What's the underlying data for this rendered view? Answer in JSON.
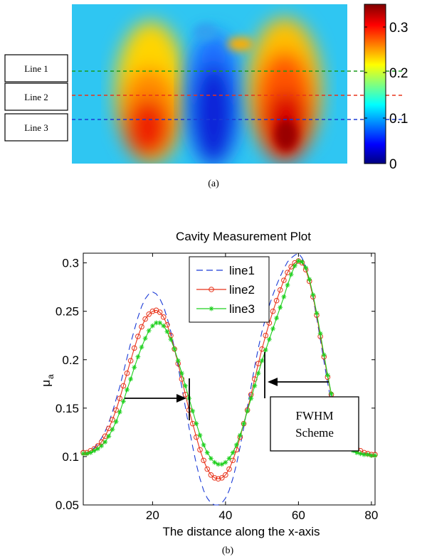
{
  "figure_a": {
    "caption": "(a)",
    "line_labels": [
      "Line 1",
      "Line 2",
      "Line 3"
    ],
    "line_colors": [
      "#1a9a1a",
      "#e8331a",
      "#1a3ad6"
    ],
    "colorbar": {
      "ticks": [
        0,
        0.1,
        0.2,
        0.3
      ],
      "tick_labels": [
        "0",
        "0.1",
        "0.2",
        "0.3"
      ],
      "min": 0,
      "max": 0.35
    }
  },
  "figure_b": {
    "caption": "(b)",
    "annotation": [
      "FWHM",
      "Scheme"
    ]
  },
  "chart_data": {
    "type": "line",
    "title": "Cavity Measurement Plot",
    "xlabel": "The distance along the x-axis",
    "ylabel": "μa",
    "xlim": [
      1,
      81
    ],
    "ylim": [
      0.05,
      0.31
    ],
    "xticks": [
      20,
      40,
      60,
      80
    ],
    "xtick_labels": [
      "20",
      "40",
      "60",
      "80"
    ],
    "yticks": [
      0.05,
      0.1,
      0.15,
      0.2,
      0.25,
      0.3
    ],
    "ytick_labels": [
      "0.05",
      "0.1",
      "0.15",
      "0.2",
      "0.25",
      "0.3"
    ],
    "legend_position": "top-center",
    "x": [
      1,
      2,
      3,
      4,
      5,
      6,
      7,
      8,
      9,
      10,
      11,
      12,
      13,
      14,
      15,
      16,
      17,
      18,
      19,
      20,
      21,
      22,
      23,
      24,
      25,
      26,
      27,
      28,
      29,
      30,
      31,
      32,
      33,
      34,
      35,
      36,
      37,
      38,
      39,
      40,
      41,
      42,
      43,
      44,
      45,
      46,
      47,
      48,
      49,
      50,
      51,
      52,
      53,
      54,
      55,
      56,
      57,
      58,
      59,
      60,
      61,
      62,
      63,
      64,
      65,
      66,
      67,
      68,
      69,
      70,
      71,
      72,
      73,
      74,
      75,
      76,
      77,
      78,
      79,
      80,
      81
    ],
    "series": [
      {
        "name": "line1",
        "color": "#1a3ad6",
        "style": "dashed",
        "marker": "none",
        "values": [
          0.104,
          0.104,
          0.106,
          0.109,
          0.113,
          0.119,
          0.126,
          0.135,
          0.146,
          0.159,
          0.172,
          0.187,
          0.202,
          0.217,
          0.231,
          0.244,
          0.255,
          0.263,
          0.268,
          0.27,
          0.268,
          0.263,
          0.255,
          0.243,
          0.229,
          0.212,
          0.193,
          0.172,
          0.151,
          0.13,
          0.11,
          0.092,
          0.077,
          0.065,
          0.057,
          0.052,
          0.05,
          0.05,
          0.052,
          0.057,
          0.065,
          0.077,
          0.092,
          0.11,
          0.13,
          0.151,
          0.172,
          0.193,
          0.212,
          0.229,
          0.243,
          0.256,
          0.267,
          0.277,
          0.286,
          0.294,
          0.301,
          0.305,
          0.308,
          0.31,
          0.305,
          0.296,
          0.282,
          0.264,
          0.243,
          0.221,
          0.198,
          0.176,
          0.156,
          0.139,
          0.126,
          0.116,
          0.11,
          0.107,
          0.105,
          0.104,
          0.103,
          0.103,
          0.103,
          0.102,
          0.102
        ]
      },
      {
        "name": "line2",
        "color": "#e8331a",
        "style": "solid",
        "marker": "circle",
        "values": [
          0.104,
          0.104,
          0.106,
          0.108,
          0.111,
          0.115,
          0.121,
          0.129,
          0.138,
          0.148,
          0.16,
          0.173,
          0.186,
          0.199,
          0.212,
          0.224,
          0.234,
          0.242,
          0.247,
          0.25,
          0.251,
          0.249,
          0.244,
          0.236,
          0.225,
          0.211,
          0.196,
          0.18,
          0.164,
          0.148,
          0.134,
          0.12,
          0.107,
          0.096,
          0.087,
          0.081,
          0.078,
          0.077,
          0.078,
          0.081,
          0.087,
          0.096,
          0.107,
          0.12,
          0.134,
          0.148,
          0.164,
          0.18,
          0.196,
          0.211,
          0.225,
          0.238,
          0.25,
          0.261,
          0.272,
          0.282,
          0.29,
          0.296,
          0.3,
          0.302,
          0.3,
          0.293,
          0.281,
          0.265,
          0.246,
          0.224,
          0.203,
          0.182,
          0.164,
          0.148,
          0.136,
          0.126,
          0.119,
          0.114,
          0.11,
          0.108,
          0.106,
          0.104,
          0.103,
          0.102,
          0.102
        ]
      },
      {
        "name": "line3",
        "color": "#1ed01e",
        "style": "solid",
        "marker": "star",
        "values": [
          0.103,
          0.103,
          0.104,
          0.106,
          0.108,
          0.111,
          0.115,
          0.121,
          0.128,
          0.136,
          0.146,
          0.157,
          0.169,
          0.18,
          0.192,
          0.203,
          0.213,
          0.222,
          0.23,
          0.235,
          0.238,
          0.238,
          0.235,
          0.229,
          0.221,
          0.211,
          0.199,
          0.186,
          0.173,
          0.16,
          0.147,
          0.134,
          0.122,
          0.112,
          0.104,
          0.098,
          0.094,
          0.092,
          0.092,
          0.094,
          0.098,
          0.104,
          0.112,
          0.122,
          0.134,
          0.147,
          0.16,
          0.173,
          0.186,
          0.199,
          0.21,
          0.221,
          0.232,
          0.243,
          0.254,
          0.265,
          0.277,
          0.288,
          0.297,
          0.302,
          0.301,
          0.295,
          0.283,
          0.267,
          0.248,
          0.227,
          0.205,
          0.184,
          0.165,
          0.148,
          0.134,
          0.123,
          0.115,
          0.11,
          0.106,
          0.104,
          0.103,
          0.102,
          0.102,
          0.101,
          0.101
        ]
      }
    ]
  }
}
